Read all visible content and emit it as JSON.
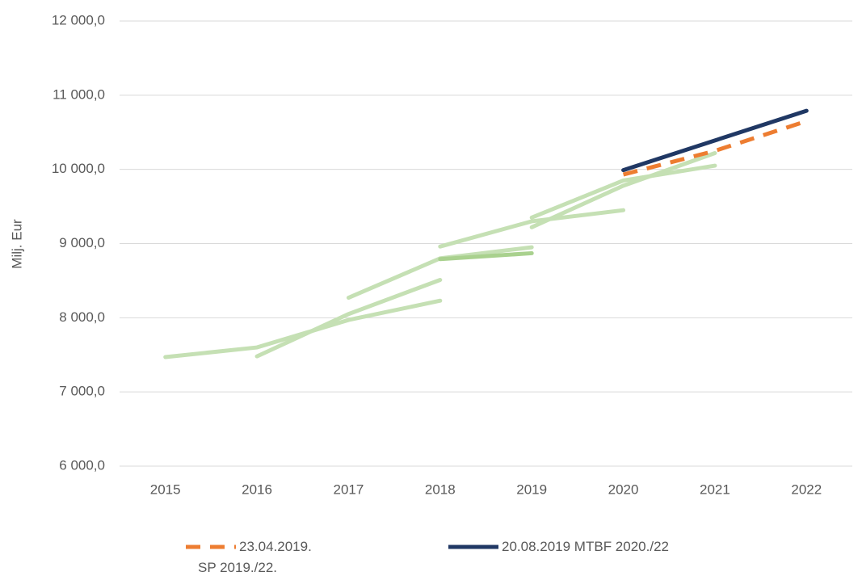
{
  "chart_data": {
    "type": "line",
    "y_label": "Milj. Eur",
    "categories": [
      "2015",
      "2016",
      "2017",
      "2018",
      "2019",
      "2020",
      "2021",
      "2022"
    ],
    "ylim": [
      6000,
      12000
    ],
    "yticks": [
      {
        "value": 6000,
        "label": "6 000,0"
      },
      {
        "value": 7000,
        "label": "7 000,0"
      },
      {
        "value": 8000,
        "label": "8 000,0"
      },
      {
        "value": 9000,
        "label": "9 000,0"
      },
      {
        "value": 10000,
        "label": "10 000,0"
      },
      {
        "value": 11000,
        "label": "11 000,0"
      },
      {
        "value": 12000,
        "label": "12 000,0"
      }
    ],
    "grid": true,
    "legend": "bottom",
    "series": [
      {
        "color": "#c5e0b4",
        "values": [
          7470,
          7600,
          7970,
          8230,
          null,
          null,
          null,
          null
        ]
      },
      {
        "color": "#c5e0b4",
        "values": [
          null,
          7480,
          8050,
          8510,
          null,
          null,
          null,
          null
        ]
      },
      {
        "color": "#c5e0b4",
        "values": [
          null,
          null,
          8270,
          8800,
          8950,
          null,
          null,
          null
        ]
      },
      {
        "color": "#a9d18e",
        "values": [
          null,
          null,
          null,
          8790,
          8870,
          null,
          null,
          null
        ]
      },
      {
        "color": "#c5e0b4",
        "values": [
          null,
          null,
          null,
          8960,
          9300,
          9450,
          null,
          null
        ]
      },
      {
        "color": "#c5e0b4",
        "values": [
          null,
          null,
          null,
          null,
          9220,
          9780,
          10220,
          null
        ]
      },
      {
        "color": "#c5e0b4",
        "values": [
          null,
          null,
          null,
          null,
          9350,
          9850,
          10050,
          null
        ]
      },
      {
        "name": "23.04.2019. SP 2019./22.",
        "color": "#ed7d31",
        "dashed": true,
        "values": [
          null,
          null,
          null,
          null,
          null,
          9930,
          10250,
          10650
        ]
      },
      {
        "name": "20.08.2019 MTBF 2020./22",
        "color": "#203864",
        "values": [
          null,
          null,
          null,
          null,
          null,
          9990,
          10390,
          10790
        ]
      }
    ]
  }
}
